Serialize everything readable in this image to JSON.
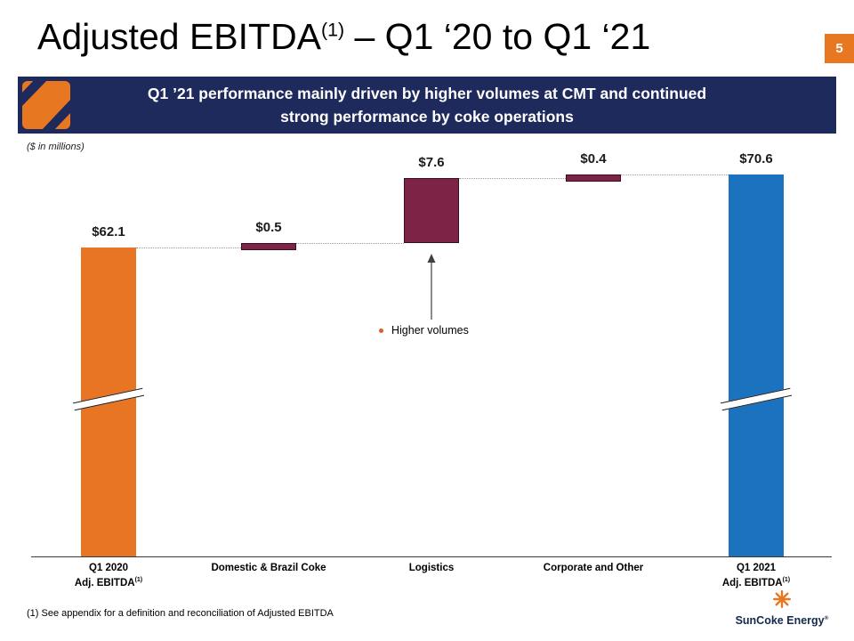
{
  "slide": {
    "title": {
      "part1": "Adjusted EBITDA",
      "sup": "(1)",
      "part2": " – Q1 ‘20 to Q1 ‘21"
    },
    "page_number": "5",
    "banner": {
      "line1": "Q1 ’21 performance mainly driven by higher volumes at CMT and continued",
      "line2": "strong performance by coke operations"
    },
    "units_note": "($ in millions)",
    "footnote": "(1)  See appendix for a definition and reconciliation of Adjusted EBITDA",
    "logo": {
      "name": "SunCoke Energy",
      "registered": "®"
    }
  },
  "chart_data": {
    "type": "bar",
    "subtype": "waterfall",
    "unit": "$ in millions",
    "start_value": 62.1,
    "end_value": 70.6,
    "connector_style": "dotted",
    "axis_break": true,
    "categories": [
      {
        "lines": [
          "Q1 2020",
          "Adj. EBITDA"
        ],
        "sup": "(1)"
      },
      {
        "lines": [
          "Domestic & Brazil Coke"
        ],
        "sup": ""
      },
      {
        "lines": [
          "Logistics"
        ],
        "sup": ""
      },
      {
        "lines": [
          "Corporate and Other"
        ],
        "sup": ""
      },
      {
        "lines": [
          "Q1 2021",
          "Adj. EBITDA"
        ],
        "sup": "(1)"
      }
    ],
    "bars": [
      {
        "label": "$62.1",
        "value": 62.1,
        "role": "total",
        "color": "#E87524",
        "axis_break": true
      },
      {
        "label": "$0.5",
        "value": 0.5,
        "role": "increase",
        "color": "#7C2346",
        "axis_break": false
      },
      {
        "label": "$7.6",
        "value": 7.6,
        "role": "increase",
        "color": "#7C2346",
        "axis_break": false
      },
      {
        "label": "$0.4",
        "value": 0.4,
        "role": "increase",
        "color": "#7C2346",
        "axis_break": false
      },
      {
        "label": "$70.6",
        "value": 70.6,
        "role": "total",
        "color": "#1B72BF",
        "axis_break": true
      }
    ],
    "annotations": [
      {
        "target": "Logistics",
        "text": "Higher volumes"
      }
    ]
  }
}
